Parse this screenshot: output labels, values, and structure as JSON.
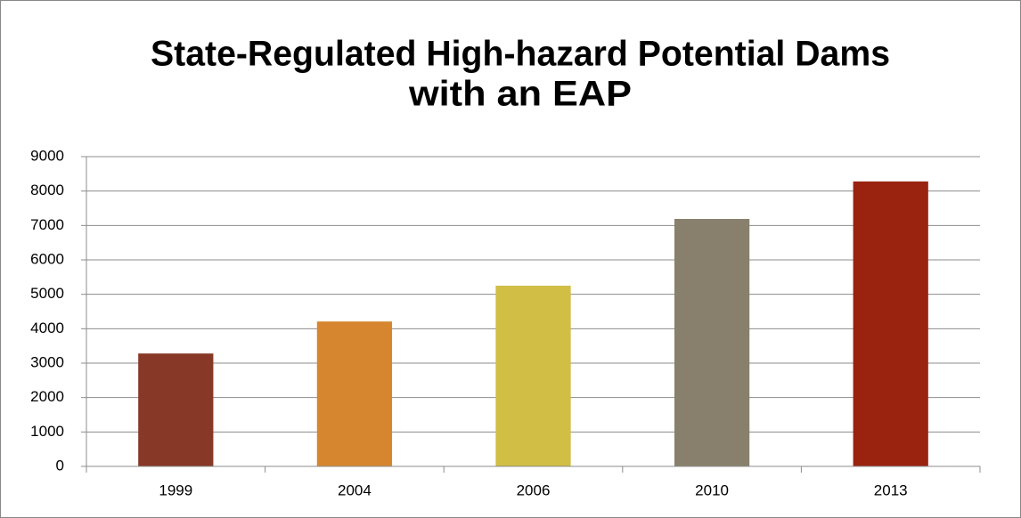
{
  "chart_data": {
    "type": "bar",
    "title": [
      "State-Regulated High-hazard Potential Dams",
      "with an EAP"
    ],
    "categories": [
      "1999",
      "2004",
      "2006",
      "2010",
      "2013"
    ],
    "values": [
      3280,
      4210,
      5250,
      7190,
      8280
    ],
    "colors": [
      "#873827",
      "#d6862f",
      "#d0be45",
      "#88806c",
      "#9a2310"
    ],
    "ylim": [
      0,
      9000
    ],
    "yticks": [
      0,
      1000,
      2000,
      3000,
      4000,
      5000,
      6000,
      7000,
      8000,
      9000
    ],
    "grid": true
  }
}
